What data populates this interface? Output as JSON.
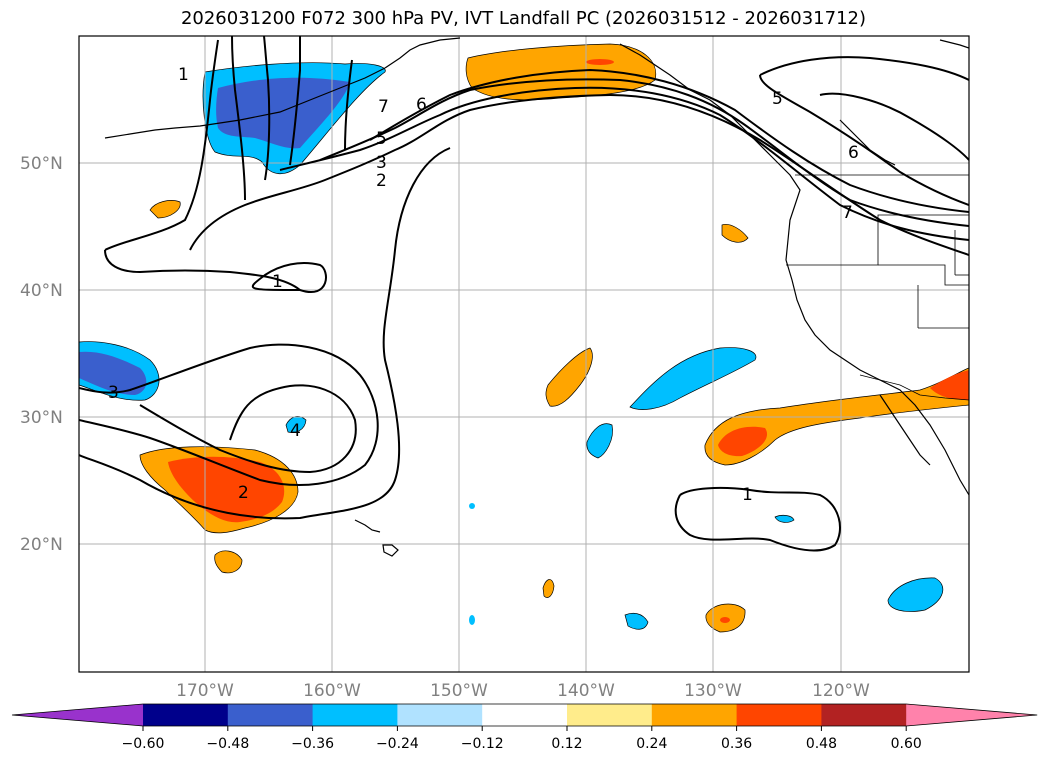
{
  "title": "2026031200 F072 300 hPa PV, IVT Landfall PC (2026031512 - 2026031712)",
  "latitude_labels": [
    "50°N",
    "40°N",
    "30°N",
    "20°N"
  ],
  "longitude_labels": [
    "170°W",
    "160°W",
    "150°W",
    "140°W",
    "130°W",
    "120°W"
  ],
  "colorbar": {
    "tick_labels": [
      "−0.60",
      "−0.48",
      "−0.36",
      "−0.24",
      "−0.12",
      "0.12",
      "0.24",
      "0.36",
      "0.48",
      "0.60"
    ],
    "colors": [
      "#9932cc",
      "#00008b",
      "#3a5fcd",
      "#00bfff",
      "#b0e2ff",
      "#ffffff",
      "#ffec8b",
      "#ffa500",
      "#ff4500",
      "#b22222",
      "#ff82ab"
    ]
  },
  "contour_labels": {
    "pv_1_dateline": "1",
    "pv_1_midwest": "1",
    "pv_1_subtropics": "1",
    "pv_2_low": "2",
    "pv_2_jet": "2",
    "pv_3_west": "3",
    "pv_3_jet": "3",
    "pv_4": "4",
    "pv_5_jet": "5",
    "pv_5_ridge": "5",
    "pv_6_jet": "6",
    "pv_6_coast": "6",
    "pv_7_jet": "7",
    "pv_7_coast": "7"
  }
}
